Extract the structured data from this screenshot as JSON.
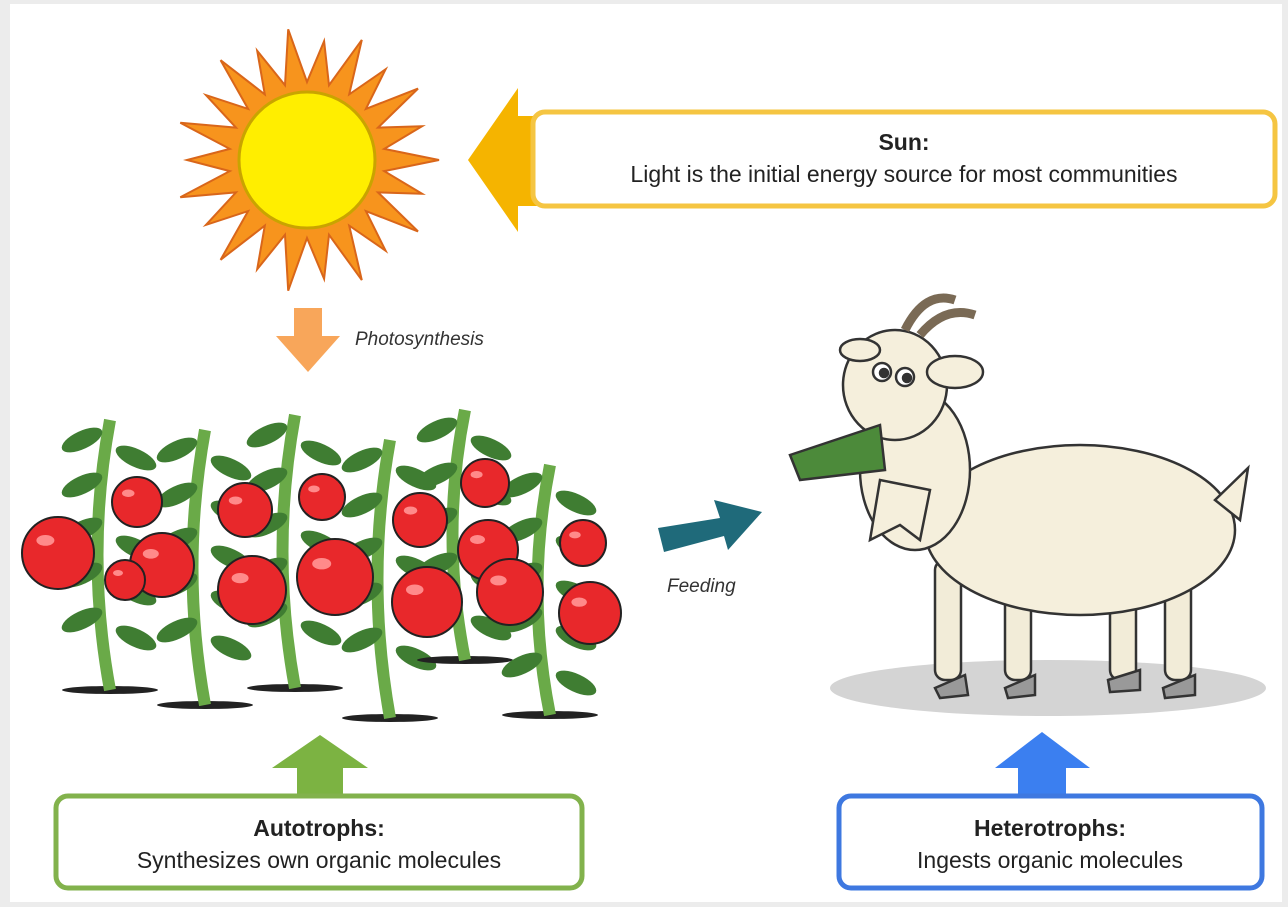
{
  "sun_box": {
    "title": "Sun:",
    "text": "Light is the initial energy source for most communities"
  },
  "labels": {
    "photosynthesis": "Photosynthesis",
    "feeding": "Feeding"
  },
  "autotrophs_box": {
    "title": "Autotrophs:",
    "text": "Synthesizes own organic molecules"
  },
  "heterotrophs_box": {
    "title": "Heterotrophs:",
    "text": "Ingests organic molecules"
  }
}
